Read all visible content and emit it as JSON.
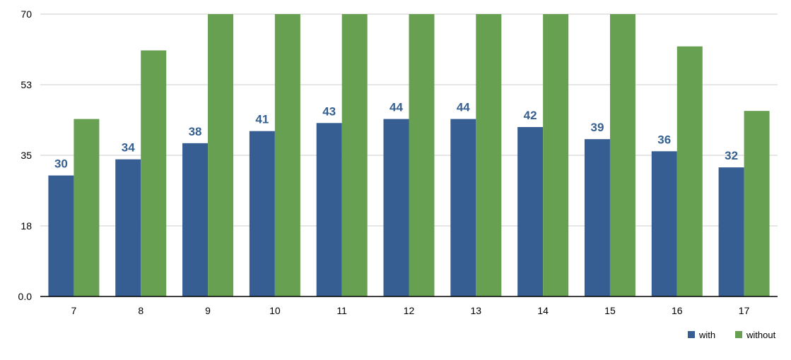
{
  "chart_data": {
    "type": "bar",
    "categories": [
      "7",
      "8",
      "9",
      "10",
      "11",
      "12",
      "13",
      "14",
      "15",
      "16",
      "17"
    ],
    "series": [
      {
        "name": "with",
        "color": "#375e93",
        "values": [
          30,
          34,
          38,
          41,
          43,
          44,
          44,
          42,
          39,
          36,
          32
        ],
        "data_labels": [
          "30",
          "34",
          "38",
          "41",
          "43",
          "44",
          "44",
          "42",
          "39",
          "36",
          "32"
        ]
      },
      {
        "name": "without",
        "color": "#67a051",
        "values": [
          44,
          61,
          70,
          70,
          70,
          70,
          70,
          70,
          70,
          62,
          46
        ]
      }
    ],
    "y_ticks": [
      0,
      17.5,
      35,
      52.5,
      70
    ],
    "y_tick_labels": [
      "0.0",
      "18",
      "35",
      "53",
      "70"
    ],
    "ylim": [
      0,
      70
    ],
    "grid": true,
    "legend_position": "bottom-right",
    "title": "",
    "xlabel": "",
    "ylabel": ""
  }
}
